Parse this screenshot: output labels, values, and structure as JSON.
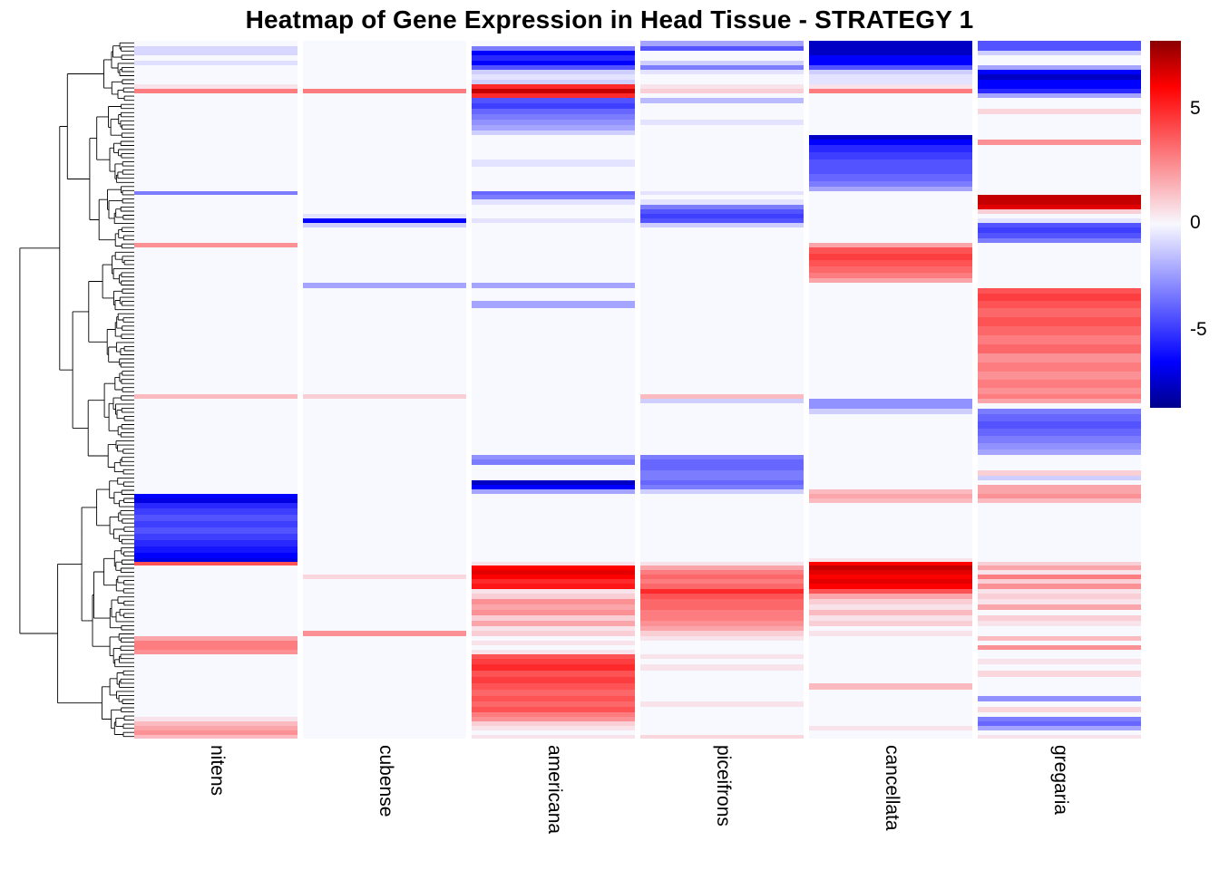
{
  "title": "Heatmap of Gene Expression in Head Tissue - STRATEGY 1",
  "colorbar": {
    "ticks": [
      "5",
      "0",
      "-5"
    ],
    "vmin": -8,
    "vmax": 8,
    "color_low": "#00008b",
    "color_blue": "#0000ff",
    "color_mid": "#f8f8ff",
    "color_red": "#ff0000",
    "color_high": "#8b0000"
  },
  "chart_data": {
    "type": "heatmap",
    "title": "Heatmap of Gene Expression in Head Tissue - STRATEGY 1",
    "columns": [
      "nitens",
      "cubense",
      "americana",
      "piceifrons",
      "cancellata",
      "gregaria"
    ],
    "row_axis": "genes, hierarchically clustered (row labels not shown, dendrogram at left)",
    "value_range": [
      -8,
      8
    ],
    "legend_position": "right",
    "band_format": "Each band is [relative_height, nitens, cubense, americana, piceifrons, cancellata, gregaria]; values are expression z-scores read from the color scale (red positive, blue negative, near-white zero)",
    "bands": [
      [
        6,
        0,
        0,
        0,
        -2,
        -7,
        -4
      ],
      [
        5,
        -0.8,
        0,
        -3,
        -4,
        -7,
        -4
      ],
      [
        5,
        -0.8,
        0,
        -6,
        0,
        -7,
        -1
      ],
      [
        6,
        0,
        0,
        -5,
        0,
        -6,
        0
      ],
      [
        5,
        -0.6,
        0,
        -6,
        -1,
        -6,
        0
      ],
      [
        5,
        0,
        0,
        -4,
        -3,
        -4,
        -2
      ],
      [
        5,
        0,
        0,
        -1,
        -0.5,
        -1,
        -6
      ],
      [
        6,
        0,
        0,
        -0.5,
        0,
        -0.5,
        -7
      ],
      [
        5,
        0,
        0,
        -1,
        0,
        -0.5,
        -6
      ],
      [
        5,
        0.5,
        0,
        5,
        0.5,
        0.5,
        -6
      ],
      [
        5,
        3,
        3,
        7,
        1,
        3,
        -5
      ],
      [
        5,
        0,
        0,
        5,
        0,
        0,
        -2
      ],
      [
        6,
        0,
        0,
        -4,
        -1.5,
        0,
        0
      ],
      [
        6,
        0,
        0,
        -4.5,
        0,
        0,
        0
      ],
      [
        6,
        0,
        0,
        -3.5,
        0,
        0,
        0.8
      ],
      [
        6,
        0,
        0,
        -3,
        0,
        0,
        0
      ],
      [
        6,
        0,
        0,
        -2.5,
        -0.5,
        0,
        0
      ],
      [
        6,
        0,
        0,
        -2,
        0,
        0,
        0
      ],
      [
        5,
        0,
        0,
        -1,
        0,
        0,
        0
      ],
      [
        5,
        0,
        0,
        0,
        0,
        -7,
        0
      ],
      [
        6,
        0,
        0,
        0,
        0,
        -6,
        2.5
      ],
      [
        8,
        0,
        0,
        0,
        0,
        -5,
        0
      ],
      [
        8,
        0,
        0,
        0,
        0,
        -4.5,
        0
      ],
      [
        8,
        0,
        0,
        -0.5,
        0,
        -4,
        0
      ],
      [
        8,
        0,
        0,
        0,
        0,
        -4,
        0
      ],
      [
        8,
        0,
        0,
        0,
        0,
        -3.5,
        0
      ],
      [
        6,
        0,
        0,
        0,
        0,
        -3,
        0
      ],
      [
        5,
        0,
        0,
        0,
        0,
        -2,
        0
      ],
      [
        4,
        -3,
        0,
        -3.5,
        -0.5,
        0,
        0
      ],
      [
        5,
        0,
        0,
        -3,
        0,
        0,
        7
      ],
      [
        6,
        0,
        0,
        -0.5,
        -0.5,
        0,
        7
      ],
      [
        5,
        0,
        0,
        0,
        -3,
        0,
        6.5
      ],
      [
        5,
        0,
        0,
        0,
        -4,
        0,
        1
      ],
      [
        5,
        0,
        -0.5,
        0,
        -4.5,
        0,
        0
      ],
      [
        5,
        0,
        -6,
        -0.5,
        -4,
        0,
        -0.5
      ],
      [
        5,
        0,
        -1,
        0,
        -1,
        0,
        -4
      ],
      [
        6,
        0,
        0,
        0,
        0,
        0,
        -4.5
      ],
      [
        6,
        0,
        0,
        0,
        0,
        0,
        -4
      ],
      [
        5,
        0,
        0,
        0,
        0,
        0,
        -3
      ],
      [
        5,
        2.5,
        0,
        0,
        0,
        2,
        0
      ],
      [
        7,
        0,
        0,
        0,
        0,
        4,
        0
      ],
      [
        7,
        0,
        0,
        0,
        0,
        4.5,
        0
      ],
      [
        7,
        0,
        0,
        0,
        0,
        4,
        0
      ],
      [
        7,
        0,
        0,
        0,
        0,
        3.5,
        0
      ],
      [
        6,
        0,
        0,
        0,
        0,
        3,
        0
      ],
      [
        5,
        0,
        0,
        0,
        0,
        2,
        0
      ],
      [
        6,
        0,
        -2,
        -2,
        0,
        0,
        0
      ],
      [
        6,
        0,
        0,
        0,
        0,
        0,
        4
      ],
      [
        8,
        0,
        0,
        0,
        0,
        0,
        4.5
      ],
      [
        8,
        0,
        0,
        -2,
        0,
        0,
        4
      ],
      [
        10,
        0,
        0,
        0,
        0,
        0,
        3.5
      ],
      [
        10,
        0,
        0,
        0,
        0,
        0,
        4
      ],
      [
        10,
        0,
        0,
        0,
        0,
        0,
        3.5
      ],
      [
        10,
        0,
        0,
        0,
        0,
        0,
        3
      ],
      [
        10,
        0,
        0,
        0,
        0,
        0,
        3.5
      ],
      [
        10,
        0,
        0,
        0,
        0,
        0,
        2.5
      ],
      [
        10,
        0,
        0,
        0,
        0,
        0,
        3
      ],
      [
        9,
        0,
        0,
        0,
        0,
        0,
        2.5
      ],
      [
        9,
        0,
        0,
        0,
        0,
        0,
        3
      ],
      [
        7,
        0,
        0,
        0,
        0,
        0,
        2.5
      ],
      [
        5,
        1.5,
        1,
        0,
        1.5,
        0,
        3
      ],
      [
        5,
        0,
        0,
        0,
        -1,
        -2.5,
        2
      ],
      [
        6,
        0,
        0,
        0,
        0,
        -2.5,
        0
      ],
      [
        6,
        0,
        0,
        0,
        0,
        -1,
        -3
      ],
      [
        8,
        0,
        0,
        0,
        0,
        0,
        -3.5
      ],
      [
        8,
        0,
        0,
        0,
        0,
        0,
        -4
      ],
      [
        8,
        0,
        0,
        0,
        0,
        0,
        -3.5
      ],
      [
        8,
        0,
        0,
        0,
        0,
        0,
        -3
      ],
      [
        7,
        0,
        0,
        0,
        0,
        0,
        -2.5
      ],
      [
        6,
        0,
        0,
        0,
        0,
        0,
        -2
      ],
      [
        5,
        0,
        0,
        -2.5,
        -3,
        0,
        0
      ],
      [
        6,
        0,
        0,
        -3,
        -3.5,
        0,
        0
      ],
      [
        6,
        0,
        0,
        0,
        -3.5,
        0,
        0
      ],
      [
        6,
        0,
        0,
        0,
        -3,
        0,
        1
      ],
      [
        5,
        0,
        0,
        0,
        -3,
        0,
        -1
      ],
      [
        5,
        0,
        0,
        -7,
        -3.5,
        0,
        0
      ],
      [
        5,
        0,
        0,
        -6,
        -3,
        0,
        2
      ],
      [
        5,
        0,
        0,
        -2,
        -1,
        1.5,
        2
      ],
      [
        5,
        -6,
        0,
        0,
        0,
        2,
        2.5
      ],
      [
        5,
        -6.5,
        0,
        0,
        0,
        1.5,
        1.5
      ],
      [
        6,
        -5,
        0,
        0,
        0,
        0,
        0
      ],
      [
        7,
        -4.5,
        0,
        0,
        0,
        0,
        0
      ],
      [
        7,
        -4,
        0,
        0,
        0,
        0,
        0
      ],
      [
        7,
        -4.5,
        0,
        0,
        0,
        0,
        0
      ],
      [
        7,
        -4,
        0,
        0,
        0,
        0,
        0
      ],
      [
        7,
        -4.5,
        0,
        0,
        0,
        0,
        0
      ],
      [
        7,
        -5,
        0,
        0,
        0,
        0,
        0
      ],
      [
        7,
        -5.5,
        0,
        0,
        0,
        0,
        0
      ],
      [
        6,
        -6,
        0,
        0,
        0,
        0,
        0
      ],
      [
        4,
        -6.5,
        0,
        0,
        0,
        0.5,
        0
      ],
      [
        4,
        4,
        0,
        0.5,
        0.5,
        6,
        1
      ],
      [
        5,
        0,
        0,
        6,
        2,
        7,
        2
      ],
      [
        5,
        0,
        0,
        6.5,
        3,
        6.5,
        0.5
      ],
      [
        5,
        0,
        0.8,
        6,
        3.5,
        6,
        3
      ],
      [
        5,
        0,
        0,
        5,
        3,
        6.5,
        1
      ],
      [
        6,
        0,
        0,
        5.5,
        3.5,
        6,
        2.5
      ],
      [
        5,
        0,
        0,
        0.5,
        5,
        4,
        0.5
      ],
      [
        6,
        0,
        0,
        1,
        4,
        2,
        1
      ],
      [
        6,
        0,
        0,
        2.5,
        3.5,
        1,
        0.5
      ],
      [
        6,
        0,
        0,
        2,
        3.5,
        0.5,
        2
      ],
      [
        6,
        0,
        0,
        2.5,
        3,
        1.5,
        0
      ],
      [
        6,
        0,
        0,
        1,
        3,
        0.5,
        1
      ],
      [
        6,
        0,
        0,
        2,
        2.5,
        1,
        0.5
      ],
      [
        5,
        0,
        0,
        0.5,
        2,
        0,
        0
      ],
      [
        6,
        0,
        2.5,
        1,
        1,
        0.5,
        0
      ],
      [
        5,
        2,
        0,
        0,
        0.5,
        0,
        1.5
      ],
      [
        5,
        3,
        0,
        0.5,
        0,
        0,
        0
      ],
      [
        5,
        3,
        0,
        0,
        0,
        0,
        2.5
      ],
      [
        5,
        2.5,
        0,
        0.5,
        0,
        0,
        0
      ],
      [
        5,
        0,
        0,
        4,
        0.5,
        0,
        0
      ],
      [
        6,
        0,
        0,
        4.5,
        0,
        0,
        0.5
      ],
      [
        7,
        0,
        0,
        5,
        0.5,
        0,
        0
      ],
      [
        7,
        0,
        0,
        4,
        0,
        0,
        0.8
      ],
      [
        7,
        0,
        0,
        4.5,
        0,
        0,
        0
      ],
      [
        7,
        0,
        0,
        4,
        0,
        1.5,
        0
      ],
      [
        7,
        0,
        0,
        3.5,
        0,
        0,
        0
      ],
      [
        6,
        0,
        0,
        4,
        0,
        0,
        -2.5
      ],
      [
        6,
        0,
        0,
        3.5,
        0.5,
        0,
        0
      ],
      [
        6,
        0,
        0,
        4,
        0,
        0,
        0.8
      ],
      [
        5,
        0,
        0,
        3,
        0,
        0,
        0
      ],
      [
        5,
        0.5,
        0,
        2.5,
        0,
        0,
        -3
      ],
      [
        5,
        1.5,
        0,
        1,
        0,
        0,
        -3.5
      ],
      [
        5,
        2,
        0,
        0.5,
        0,
        0.5,
        -2
      ],
      [
        5,
        2.5,
        0,
        0,
        0,
        0,
        0
      ],
      [
        4,
        1.5,
        0,
        0.5,
        0.8,
        0,
        0.5
      ]
    ]
  }
}
